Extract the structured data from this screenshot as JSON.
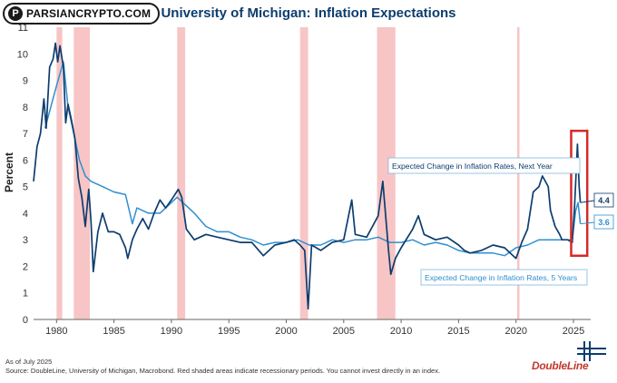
{
  "watermark": {
    "text": "PARSIANCRYPTO.COM",
    "icon": "P"
  },
  "footer": {
    "as_of": "As of July 2025",
    "source": "Source: DoubleLine, University of Michigan, Macrobond. Red shaded areas indicate recessionary periods. You cannot invest directly in an index."
  },
  "logo": {
    "text": "DoubleLine"
  },
  "colors": {
    "next_year": "#0d3d6e",
    "five_year": "#2f8fcf",
    "recession": "#f7c5c5",
    "highlight": "#d42a2a"
  },
  "chart_data": {
    "type": "line",
    "title": "University of Michigan: Inflation Expectations",
    "xlabel": "",
    "ylabel": "Percent",
    "xlim": [
      1978,
      2026.5
    ],
    "ylim": [
      0,
      11
    ],
    "x_ticks": [
      1980,
      1985,
      1990,
      1995,
      2000,
      2005,
      2010,
      2015,
      2020,
      2025
    ],
    "y_ticks": [
      0,
      1,
      2,
      3,
      4,
      5,
      6,
      7,
      8,
      9,
      10,
      11
    ],
    "recessions": [
      [
        1980.0,
        1980.5
      ],
      [
        1981.5,
        1982.9
      ],
      [
        1990.5,
        1991.2
      ],
      [
        2001.2,
        2001.9
      ],
      [
        2007.9,
        2009.5
      ],
      [
        2020.1,
        2020.3
      ]
    ],
    "highlight_box": [
      2024.8,
      2026.2,
      2.4,
      7.1
    ],
    "series": [
      {
        "name": "Expected Change in Inflation Rates, Next Year",
        "end_value_label": "4.4",
        "points": [
          [
            1978,
            5.2
          ],
          [
            1978.3,
            6.5
          ],
          [
            1978.6,
            7
          ],
          [
            1978.9,
            8.3
          ],
          [
            1979.1,
            7.2
          ],
          [
            1979.4,
            9.5
          ],
          [
            1979.7,
            9.8
          ],
          [
            1979.9,
            10.4
          ],
          [
            1980.1,
            9.7
          ],
          [
            1980.3,
            10.3
          ],
          [
            1980.6,
            9.5
          ],
          [
            1980.8,
            7.4
          ],
          [
            1981,
            8.1
          ],
          [
            1981.3,
            7.5
          ],
          [
            1981.6,
            6.8
          ],
          [
            1981.9,
            5.3
          ],
          [
            1982.2,
            4.6
          ],
          [
            1982.5,
            3.5
          ],
          [
            1982.8,
            4.9
          ],
          [
            1983,
            3.7
          ],
          [
            1983.2,
            1.8
          ],
          [
            1983.6,
            3.3
          ],
          [
            1984,
            4.0
          ],
          [
            1984.5,
            3.3
          ],
          [
            1985,
            3.3
          ],
          [
            1985.5,
            3.2
          ],
          [
            1986,
            2.7
          ],
          [
            1986.2,
            2.3
          ],
          [
            1986.6,
            3.0
          ],
          [
            1987,
            3.4
          ],
          [
            1987.5,
            3.8
          ],
          [
            1988,
            3.4
          ],
          [
            1988.5,
            4.0
          ],
          [
            1989,
            4.5
          ],
          [
            1989.5,
            4.2
          ],
          [
            1990,
            4.5
          ],
          [
            1990.6,
            4.9
          ],
          [
            1990.9,
            4.6
          ],
          [
            1991.3,
            3.4
          ],
          [
            1992,
            3.0
          ],
          [
            1993,
            3.2
          ],
          [
            1994,
            3.1
          ],
          [
            1995,
            3.0
          ],
          [
            1996,
            2.9
          ],
          [
            1997,
            2.9
          ],
          [
            1998,
            2.4
          ],
          [
            1999,
            2.8
          ],
          [
            2000,
            2.9
          ],
          [
            2000.7,
            3.0
          ],
          [
            2001.2,
            2.8
          ],
          [
            2001.6,
            2.6
          ],
          [
            2001.9,
            0.4
          ],
          [
            2002.2,
            2.8
          ],
          [
            2003,
            2.6
          ],
          [
            2004,
            2.9
          ],
          [
            2005,
            3.0
          ],
          [
            2005.7,
            4.5
          ],
          [
            2006,
            3.2
          ],
          [
            2007,
            3.1
          ],
          [
            2008,
            3.9
          ],
          [
            2008.4,
            5.2
          ],
          [
            2008.9,
            2.6
          ],
          [
            2009.1,
            1.7
          ],
          [
            2009.5,
            2.3
          ],
          [
            2010,
            2.7
          ],
          [
            2011,
            3.4
          ],
          [
            2011.5,
            3.9
          ],
          [
            2012,
            3.2
          ],
          [
            2013,
            3.0
          ],
          [
            2014,
            3.1
          ],
          [
            2015,
            2.8
          ],
          [
            2015.5,
            2.6
          ],
          [
            2016,
            2.5
          ],
          [
            2017,
            2.6
          ],
          [
            2018,
            2.8
          ],
          [
            2019,
            2.7
          ],
          [
            2020,
            2.3
          ],
          [
            2020.5,
            2.9
          ],
          [
            2021,
            3.4
          ],
          [
            2021.5,
            4.8
          ],
          [
            2022,
            5.0
          ],
          [
            2022.3,
            5.4
          ],
          [
            2022.8,
            5.0
          ],
          [
            2023,
            4.1
          ],
          [
            2023.4,
            3.5
          ],
          [
            2023.8,
            3.2
          ],
          [
            2024,
            3.0
          ],
          [
            2024.5,
            3.0
          ],
          [
            2024.9,
            2.9
          ],
          [
            2025.1,
            4.3
          ],
          [
            2025.35,
            6.6
          ],
          [
            2025.5,
            5.0
          ],
          [
            2025.6,
            4.4
          ]
        ]
      },
      {
        "name": "Expected Change in Inflation Rates, 5 Years",
        "end_value_label": "3.6",
        "points": [
          [
            1979,
            7.2
          ],
          [
            1980,
            8.8
          ],
          [
            1980.6,
            9.7
          ],
          [
            1981,
            8.0
          ],
          [
            1981.5,
            7.0
          ],
          [
            1982,
            6.0
          ],
          [
            1982.5,
            5.4
          ],
          [
            1983,
            5.2
          ],
          [
            1984,
            5.0
          ],
          [
            1985,
            4.8
          ],
          [
            1986,
            4.7
          ],
          [
            1986.6,
            3.6
          ],
          [
            1987,
            4.2
          ],
          [
            1988,
            4.0
          ],
          [
            1989,
            4.0
          ],
          [
            1990,
            4.4
          ],
          [
            1990.5,
            4.6
          ],
          [
            1991,
            4.4
          ],
          [
            1992,
            4.0
          ],
          [
            1993,
            3.5
          ],
          [
            1994,
            3.3
          ],
          [
            1995,
            3.3
          ],
          [
            1996,
            3.1
          ],
          [
            1997,
            3.0
          ],
          [
            1998,
            2.8
          ],
          [
            1999,
            2.9
          ],
          [
            2000,
            2.9
          ],
          [
            2001,
            3.0
          ],
          [
            2002,
            2.8
          ],
          [
            2003,
            2.8
          ],
          [
            2004,
            3.0
          ],
          [
            2005,
            2.9
          ],
          [
            2006,
            3.0
          ],
          [
            2007,
            3.0
          ],
          [
            2008,
            3.1
          ],
          [
            2009,
            2.9
          ],
          [
            2010,
            2.9
          ],
          [
            2011,
            3.0
          ],
          [
            2012,
            2.8
          ],
          [
            2013,
            2.9
          ],
          [
            2014,
            2.8
          ],
          [
            2015,
            2.6
          ],
          [
            2016,
            2.5
          ],
          [
            2017,
            2.5
          ],
          [
            2018,
            2.5
          ],
          [
            2019,
            2.4
          ],
          [
            2020,
            2.7
          ],
          [
            2021,
            2.8
          ],
          [
            2022,
            3.0
          ],
          [
            2023,
            3.0
          ],
          [
            2024,
            3.0
          ],
          [
            2024.9,
            3.0
          ],
          [
            2025.2,
            4.1
          ],
          [
            2025.4,
            4.4
          ],
          [
            2025.6,
            3.6
          ]
        ]
      }
    ],
    "annotations": [
      {
        "text": "Expected Change in Inflation Rates, Next Year",
        "series": 0
      },
      {
        "text": "Expected Change in Inflation Rates, 5 Years",
        "series": 1
      }
    ]
  }
}
